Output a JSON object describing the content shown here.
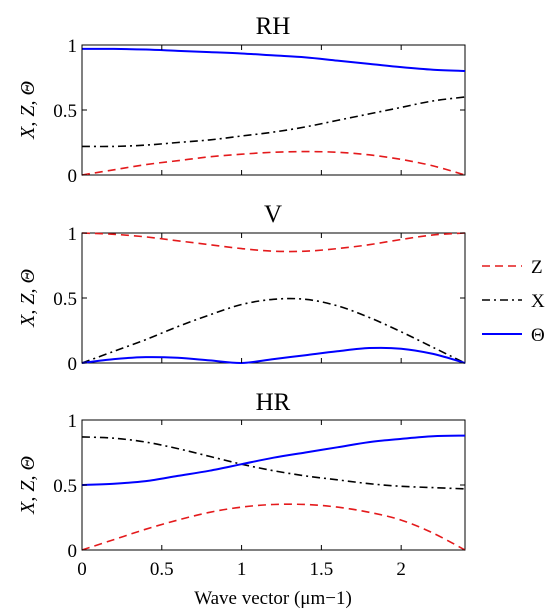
{
  "figure": {
    "xlabel": "Wave vector (μm−1)",
    "xticks": [
      "0",
      "0.5",
      "1",
      "1.5",
      "2"
    ],
    "xtick_values": [
      0,
      0.5,
      1,
      1.5,
      2
    ],
    "yticks": [
      "0",
      "0.5",
      "1"
    ],
    "ytick_values": [
      0,
      0.5,
      1
    ]
  },
  "legend": {
    "placement": "right-middle",
    "entries": [
      {
        "label": "Z",
        "color": "#e41a1c",
        "style": "dashed"
      },
      {
        "label": "X",
        "color": "#000000",
        "style": "dashdot"
      },
      {
        "label": "Θ",
        "color": "#0000ff",
        "style": "solid"
      }
    ]
  },
  "chart_data": [
    {
      "type": "line",
      "title": "RH",
      "ylabel": "X, Z, Θ",
      "xlim": [
        0,
        2.4
      ],
      "ylim": [
        0,
        1
      ],
      "x": [
        0,
        0.2,
        0.4,
        0.6,
        0.8,
        1.0,
        1.2,
        1.4,
        1.6,
        1.8,
        2.0,
        2.2,
        2.4
      ],
      "series": [
        {
          "name": "Z",
          "values": [
            0.0,
            0.04,
            0.08,
            0.11,
            0.14,
            0.16,
            0.175,
            0.18,
            0.175,
            0.155,
            0.12,
            0.07,
            0.0
          ]
        },
        {
          "name": "X",
          "values": [
            0.22,
            0.22,
            0.23,
            0.25,
            0.27,
            0.3,
            0.33,
            0.37,
            0.42,
            0.47,
            0.52,
            0.57,
            0.6
          ]
        },
        {
          "name": "Θ",
          "values": [
            0.97,
            0.97,
            0.965,
            0.955,
            0.945,
            0.935,
            0.92,
            0.905,
            0.88,
            0.855,
            0.83,
            0.81,
            0.8
          ]
        }
      ]
    },
    {
      "type": "line",
      "title": "V",
      "ylabel": "X, Z, Θ",
      "xlim": [
        0,
        2.4
      ],
      "ylim": [
        0,
        1
      ],
      "x": [
        0,
        0.2,
        0.4,
        0.6,
        0.8,
        1.0,
        1.2,
        1.4,
        1.6,
        1.8,
        2.0,
        2.2,
        2.4
      ],
      "series": [
        {
          "name": "Z",
          "values": [
            1.0,
            0.99,
            0.97,
            0.94,
            0.91,
            0.88,
            0.86,
            0.86,
            0.88,
            0.91,
            0.95,
            0.985,
            1.0
          ]
        },
        {
          "name": "X",
          "values": [
            0.0,
            0.09,
            0.18,
            0.28,
            0.37,
            0.45,
            0.49,
            0.49,
            0.44,
            0.35,
            0.24,
            0.12,
            0.0
          ]
        },
        {
          "name": "Θ",
          "values": [
            0.0,
            0.03,
            0.045,
            0.04,
            0.02,
            0.0,
            0.03,
            0.06,
            0.09,
            0.115,
            0.11,
            0.07,
            0.0
          ]
        }
      ]
    },
    {
      "type": "line",
      "title": "HR",
      "ylabel": "X, Z, Θ",
      "xlim": [
        0,
        2.4
      ],
      "ylim": [
        0,
        1
      ],
      "x": [
        0,
        0.2,
        0.4,
        0.6,
        0.8,
        1.0,
        1.2,
        1.4,
        1.6,
        1.8,
        2.0,
        2.2,
        2.4
      ],
      "series": [
        {
          "name": "Z",
          "values": [
            0.0,
            0.08,
            0.16,
            0.23,
            0.29,
            0.33,
            0.35,
            0.35,
            0.33,
            0.29,
            0.23,
            0.13,
            0.0
          ]
        },
        {
          "name": "X",
          "values": [
            0.87,
            0.86,
            0.83,
            0.78,
            0.72,
            0.66,
            0.61,
            0.57,
            0.54,
            0.51,
            0.49,
            0.48,
            0.47
          ]
        },
        {
          "name": "Θ",
          "values": [
            0.5,
            0.51,
            0.53,
            0.57,
            0.61,
            0.66,
            0.71,
            0.75,
            0.79,
            0.83,
            0.855,
            0.875,
            0.88
          ]
        }
      ]
    }
  ]
}
